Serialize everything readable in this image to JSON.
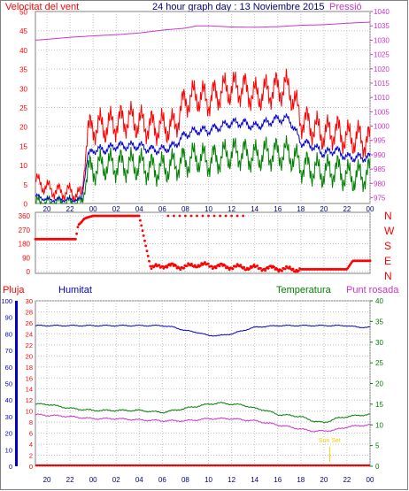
{
  "header": {
    "left_label": "Velocitat del vent",
    "title": "24 hour graph day : 13 Noviembre 2015",
    "right_label": "Pressió"
  },
  "colors": {
    "wind_max": "#ff0000",
    "wind_avg": "#0000cc",
    "wind_min": "#008000",
    "pressure": "#cc33cc",
    "humidity": "#0000cc",
    "temperature": "#008000",
    "dewpoint": "#cc33cc",
    "rain": "#ff0000",
    "direction": "#ff0000",
    "sun": "#ffcc00",
    "axis_text": "#000080"
  },
  "bottom_header": {
    "rain_label": "Pluja",
    "humidity_label": "Humitat",
    "temperature_label": "Temperatura",
    "dewpoint_label": "Punt rosada"
  },
  "sun_label": "Sun Set",
  "compass": [
    "N",
    "W",
    "S",
    "E",
    "N"
  ],
  "x_ticks": [
    "20",
    "22",
    "00",
    "02",
    "04",
    "06",
    "08",
    "10",
    "12",
    "14",
    "16",
    "18",
    "20",
    "22",
    "00"
  ],
  "chart_data": [
    {
      "type": "line",
      "panel": "wind_pressure",
      "x_unit": "hour",
      "x_range": [
        19,
        48
      ],
      "y_left": {
        "label": "Velocitat del vent",
        "ticks": [
          0,
          5,
          10,
          15,
          20,
          25,
          30,
          35,
          40,
          45,
          50
        ],
        "ylim": [
          0,
          50
        ]
      },
      "y_right": {
        "label": "Pressió",
        "ticks": [
          975,
          980,
          985,
          990,
          995,
          1000,
          1005,
          1010,
          1015,
          1020,
          1025,
          1030,
          1035,
          1040
        ],
        "ylim": [
          973,
          1040
        ]
      },
      "series": [
        {
          "key": "wind_max",
          "x": [
            19,
            20,
            21,
            22,
            23,
            23.5,
            24,
            25,
            26,
            27,
            28,
            29,
            30,
            31,
            32,
            33,
            34,
            35,
            36,
            37,
            38,
            39,
            40,
            41,
            42,
            43,
            44,
            45,
            46,
            47,
            48
          ],
          "values": [
            6,
            4,
            3,
            3,
            2,
            18,
            20,
            20,
            21,
            22,
            21,
            20,
            20,
            20,
            27,
            28,
            27,
            29,
            30,
            30,
            28,
            29,
            30,
            30,
            22,
            20,
            18,
            19,
            17,
            17,
            16
          ]
        },
        {
          "key": "wind_avg",
          "x": [
            19,
            20,
            21,
            22,
            23,
            23.5,
            24,
            25,
            26,
            27,
            28,
            29,
            30,
            31,
            32,
            33,
            34,
            35,
            36,
            37,
            38,
            39,
            40,
            41,
            42,
            43,
            44,
            45,
            46,
            47,
            48
          ],
          "values": [
            2,
            1,
            1,
            1,
            1,
            12,
            14,
            14,
            15,
            15,
            15,
            14,
            14,
            15,
            18,
            19,
            19,
            20,
            21,
            21,
            20,
            21,
            22,
            22,
            16,
            15,
            13,
            14,
            12,
            12,
            12
          ]
        },
        {
          "key": "wind_min",
          "x": [
            19,
            20,
            21,
            22,
            23,
            23.5,
            24,
            25,
            26,
            27,
            28,
            29,
            30,
            31,
            32,
            33,
            34,
            35,
            36,
            37,
            38,
            39,
            40,
            41,
            42,
            43,
            44,
            45,
            46,
            47,
            48
          ],
          "values": [
            0,
            0,
            0,
            0,
            0,
            8,
            9,
            10,
            10,
            10,
            10,
            9,
            9,
            10,
            11,
            12,
            11,
            12,
            13,
            13,
            12,
            13,
            13,
            13,
            10,
            9,
            8,
            9,
            7,
            7,
            8
          ]
        },
        {
          "key": "pressure",
          "axis": "right",
          "x": [
            19,
            20,
            22,
            24,
            26,
            28,
            30,
            32,
            33,
            34,
            36,
            38,
            40,
            42,
            44,
            46,
            48
          ],
          "values": [
            1030,
            1030.3,
            1031,
            1031.5,
            1031.9,
            1032.5,
            1033.5,
            1034.2,
            1035,
            1035,
            1034.6,
            1034.5,
            1034.7,
            1035.2,
            1035.4,
            1035.9,
            1036.3
          ]
        }
      ]
    },
    {
      "type": "scatter",
      "panel": "wind_direction",
      "x_unit": "hour",
      "x_range": [
        19,
        48
      ],
      "y": {
        "ticks": [
          0,
          90,
          180,
          270,
          360
        ],
        "ylim": [
          0,
          360
        ]
      },
      "series": [
        {
          "key": "direction",
          "x": [
            19,
            20,
            21,
            22,
            22.5,
            22.7,
            23,
            23.2,
            23.5,
            24,
            25,
            26,
            27,
            28,
            29,
            30,
            31,
            32,
            33,
            34,
            35,
            36,
            37,
            38,
            39,
            40,
            41,
            42,
            43,
            44,
            45,
            46,
            46.5,
            47,
            48
          ],
          "values": [
            210,
            210,
            210,
            210,
            210,
            300,
            320,
            340,
            350,
            360,
            360,
            360,
            360,
            360,
            20,
            40,
            35,
            30,
            45,
            40,
            35,
            30,
            28,
            25,
            22,
            20,
            15,
            15,
            15,
            15,
            15,
            15,
            70,
            70,
            70
          ]
        },
        {
          "key": "direction_sparse",
          "x": [
            30.5,
            31,
            31.5,
            32,
            32.5,
            33,
            33.5,
            34,
            34.5,
            35,
            35.5,
            36,
            36.5,
            37
          ],
          "values": [
            360,
            360,
            360,
            360,
            360,
            360,
            360,
            360,
            360,
            360,
            360,
            360,
            360,
            360
          ]
        }
      ]
    },
    {
      "type": "line",
      "panel": "temp_hum",
      "x_unit": "hour",
      "x_range": [
        19,
        48
      ],
      "y_rain": {
        "label": "Pluja",
        "ticks": [
          0,
          2,
          4,
          6,
          8,
          10,
          12,
          14,
          16,
          18,
          20,
          22,
          24,
          26,
          28,
          30
        ],
        "ylim": [
          0,
          30
        ]
      },
      "y_humidity": {
        "label": "Humitat",
        "ticks": [
          0,
          10,
          20,
          30,
          40,
          50,
          60,
          70,
          80,
          90,
          100
        ],
        "ylim": [
          0,
          100
        ]
      },
      "y_temp": {
        "label": "Temperatura",
        "ticks": [
          0,
          5,
          10,
          15,
          20,
          25,
          30,
          35,
          40
        ],
        "ylim": [
          0,
          40
        ]
      },
      "series": [
        {
          "key": "humidity",
          "x": [
            19,
            20,
            22,
            24,
            26,
            28,
            30,
            31,
            32,
            33,
            34,
            35,
            36,
            37,
            38,
            40,
            42,
            44,
            46,
            47,
            48
          ],
          "values": [
            85,
            85,
            85,
            85,
            85,
            85,
            85,
            84,
            82,
            81,
            79,
            79,
            80,
            82,
            84,
            85,
            85,
            85,
            85,
            84,
            84
          ]
        },
        {
          "key": "temperature",
          "x": [
            19,
            20,
            21,
            22,
            24,
            26,
            28,
            30,
            31,
            32,
            33,
            34,
            35,
            36,
            37,
            38,
            39,
            40,
            41,
            42,
            43,
            44,
            45,
            46,
            47,
            48
          ],
          "values": [
            15,
            15,
            14.5,
            14,
            13.5,
            13.5,
            13.5,
            13,
            13.5,
            14,
            14.5,
            15,
            15.3,
            15,
            14.8,
            14,
            13.5,
            12.5,
            12.3,
            12,
            11,
            10.5,
            11.5,
            12,
            12.3,
            12.5
          ]
        },
        {
          "key": "dewpoint",
          "x": [
            19,
            20,
            21,
            22,
            24,
            26,
            28,
            30,
            31,
            32,
            33,
            34,
            35,
            36,
            37,
            38,
            39,
            40,
            41,
            42,
            43,
            44,
            45,
            46,
            47,
            48
          ],
          "values": [
            12.5,
            12.3,
            12.2,
            12,
            11.5,
            11.5,
            11.2,
            11,
            11,
            11,
            11.2,
            11.5,
            11.5,
            11.5,
            11.2,
            11,
            10.5,
            10,
            9.5,
            9,
            8.5,
            8.5,
            8.8,
            9.5,
            9.8,
            10
          ]
        },
        {
          "key": "rain",
          "x": [
            19,
            48
          ],
          "values": [
            0,
            0
          ]
        }
      ],
      "annotation": {
        "text": "Sun Set",
        "x": 44.5
      }
    }
  ]
}
